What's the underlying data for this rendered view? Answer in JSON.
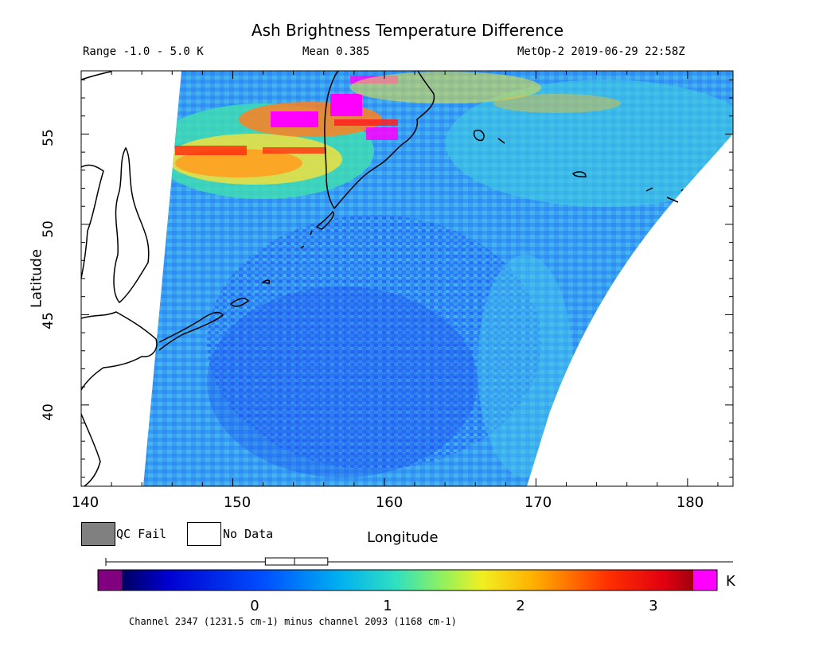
{
  "header": {
    "title": "Ash Brightness Temperature Difference",
    "range": "Range -1.0 - 5.0 K",
    "mean": "Mean 0.385",
    "satellite_time": "MetOp-2 2019-06-29 22:58Z"
  },
  "map": {
    "ylabel": "Latitude",
    "xlabel": "Longitude",
    "lat_ticks": [
      "55",
      "50",
      "45",
      "40"
    ],
    "lon_ticks": [
      "140",
      "150",
      "160",
      "170",
      "180"
    ],
    "lon_range": [
      140,
      183
    ],
    "lat_range": [
      35.5,
      58.5
    ],
    "colors": {
      "background_ocean": "#3ca0f0",
      "high_value": "#ff00ff",
      "coast": "#000000"
    }
  },
  "legend": {
    "qc_fail": "QC Fail",
    "no_data": "No Data",
    "qc_fail_color": "#808080",
    "no_data_color": "#ffffff"
  },
  "colorbar": {
    "unit": "K",
    "ticks": [
      "0",
      "1",
      "2",
      "3"
    ],
    "tick_values": [
      0,
      1,
      2,
      3
    ],
    "value_range": [
      -1.0,
      3.3
    ],
    "histogram_box": {
      "low": 0.08,
      "median": 0.3,
      "high": 0.55
    },
    "channel_label": "Channel 2347 (1231.5 cm-1) minus channel 2093 (1168 cm-1)"
  }
}
